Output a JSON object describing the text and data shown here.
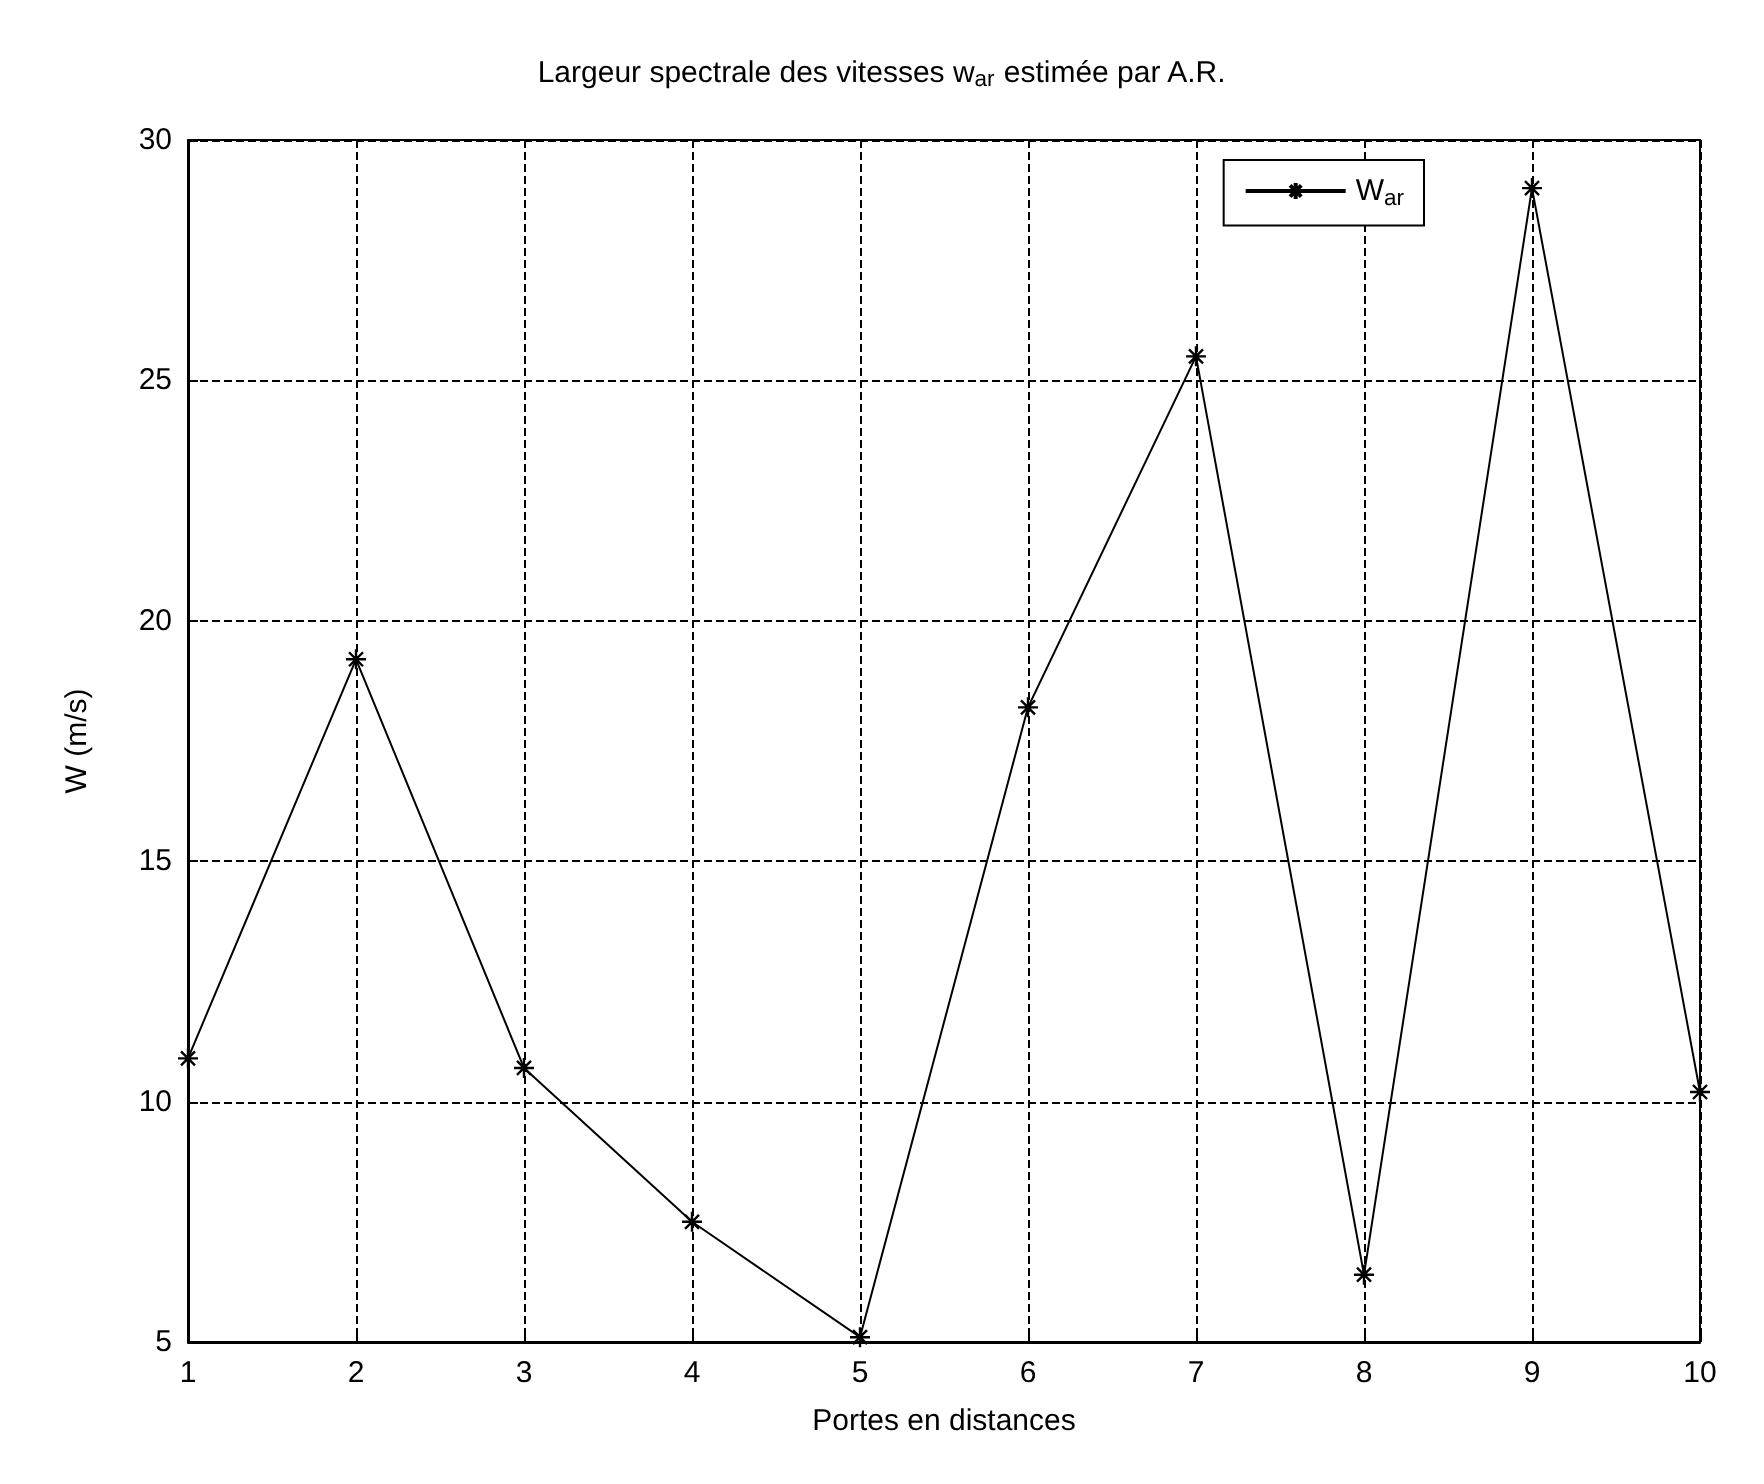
{
  "chart_data": {
    "type": "line",
    "title": "Largeur spectrale des vitesses w$_{ar}$ estimée par A.R.",
    "xlabel": "Portes en distances",
    "ylabel": "W (m/s)",
    "x": [
      1,
      2,
      3,
      4,
      5,
      6,
      7,
      8,
      9,
      10
    ],
    "series": [
      {
        "name": "W$_{ar}$",
        "color": "#000000",
        "values": [
          10.9,
          19.2,
          10.7,
          7.5,
          5.1,
          18.2,
          25.5,
          6.4,
          29.0,
          10.2
        ]
      }
    ],
    "xlim": [
      1,
      10
    ],
    "xticks": [
      1,
      2,
      3,
      4,
      5,
      6,
      7,
      8,
      9,
      10
    ],
    "ylim": [
      5,
      30
    ],
    "yticks": [
      5,
      10,
      15,
      20,
      25,
      30
    ],
    "grid": true,
    "legend": "top right",
    "marker": "cross",
    "line_style": "solid"
  }
}
